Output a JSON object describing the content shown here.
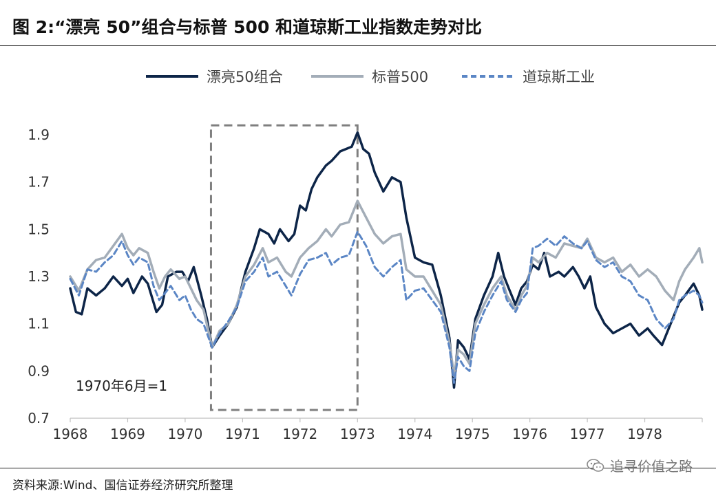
{
  "title": "图 2:“漂亮 50”组合与标普 500 和道琼斯工业指数走势对比",
  "source": "资料来源:Wind、国信证券经济研究所整理",
  "watermark": "追寻价值之路",
  "icons": {
    "watermark": "wechat-icon"
  },
  "chart_data": {
    "type": "line",
    "title": "",
    "xlabel": "",
    "ylabel": "",
    "annotation": "1970年6月=1",
    "highlight": {
      "x_start": 1970.45,
      "x_end": 1973.0,
      "y_start": 0.735,
      "y_end": 1.94,
      "style": "dashed",
      "color": "#7f7f7f"
    },
    "xlim": [
      1968.0,
      1979.0
    ],
    "ylim": [
      0.7,
      1.9
    ],
    "x_ticks": [
      1968,
      1969,
      1970,
      1971,
      1972,
      1973,
      1974,
      1975,
      1976,
      1977,
      1978
    ],
    "x_tick_labels": [
      "1968",
      "1969",
      "1970",
      "1971",
      "1972",
      "1973",
      "1974",
      "1975",
      "1976",
      "1977",
      "1978"
    ],
    "y_ticks": [
      0.7,
      0.9,
      1.1,
      1.3,
      1.5,
      1.7,
      1.9
    ],
    "y_tick_labels": [
      "0.7",
      "0.9",
      "1.1",
      "1.3",
      "1.5",
      "1.7",
      "1.9"
    ],
    "legend": {
      "position": "top"
    },
    "grid": false,
    "series": [
      {
        "name": "漂亮50组合",
        "color": "#0d2548",
        "dash": "solid",
        "points": [
          [
            1968.0,
            1.25
          ],
          [
            1968.1,
            1.15
          ],
          [
            1968.2,
            1.14
          ],
          [
            1968.3,
            1.25
          ],
          [
            1968.45,
            1.22
          ],
          [
            1968.6,
            1.25
          ],
          [
            1968.75,
            1.3
          ],
          [
            1968.9,
            1.26
          ],
          [
            1969.0,
            1.29
          ],
          [
            1969.1,
            1.23
          ],
          [
            1969.25,
            1.3
          ],
          [
            1969.35,
            1.27
          ],
          [
            1969.5,
            1.15
          ],
          [
            1969.6,
            1.18
          ],
          [
            1969.7,
            1.3
          ],
          [
            1969.85,
            1.32
          ],
          [
            1969.95,
            1.32
          ],
          [
            1970.05,
            1.28
          ],
          [
            1970.15,
            1.34
          ],
          [
            1970.28,
            1.22
          ],
          [
            1970.38,
            1.12
          ],
          [
            1970.47,
            1.0
          ],
          [
            1970.6,
            1.05
          ],
          [
            1970.75,
            1.1
          ],
          [
            1970.9,
            1.17
          ],
          [
            1971.05,
            1.32
          ],
          [
            1971.2,
            1.42
          ],
          [
            1971.3,
            1.5
          ],
          [
            1971.45,
            1.48
          ],
          [
            1971.55,
            1.44
          ],
          [
            1971.65,
            1.5
          ],
          [
            1971.8,
            1.45
          ],
          [
            1971.9,
            1.48
          ],
          [
            1972.0,
            1.6
          ],
          [
            1972.1,
            1.58
          ],
          [
            1972.2,
            1.67
          ],
          [
            1972.3,
            1.72
          ],
          [
            1972.45,
            1.77
          ],
          [
            1972.55,
            1.79
          ],
          [
            1972.7,
            1.83
          ],
          [
            1972.8,
            1.84
          ],
          [
            1972.9,
            1.85
          ],
          [
            1973.0,
            1.91
          ],
          [
            1973.1,
            1.84
          ],
          [
            1973.2,
            1.82
          ],
          [
            1973.3,
            1.74
          ],
          [
            1973.45,
            1.66
          ],
          [
            1973.6,
            1.72
          ],
          [
            1973.75,
            1.7
          ],
          [
            1973.85,
            1.55
          ],
          [
            1974.0,
            1.38
          ],
          [
            1974.15,
            1.36
          ],
          [
            1974.3,
            1.35
          ],
          [
            1974.45,
            1.22
          ],
          [
            1974.6,
            1.04
          ],
          [
            1974.68,
            0.83
          ],
          [
            1974.75,
            1.03
          ],
          [
            1974.85,
            1.0
          ],
          [
            1974.95,
            0.95
          ],
          [
            1975.05,
            1.12
          ],
          [
            1975.2,
            1.22
          ],
          [
            1975.35,
            1.3
          ],
          [
            1975.45,
            1.4
          ],
          [
            1975.55,
            1.3
          ],
          [
            1975.65,
            1.24
          ],
          [
            1975.75,
            1.18
          ],
          [
            1975.85,
            1.25
          ],
          [
            1975.95,
            1.28
          ],
          [
            1976.05,
            1.35
          ],
          [
            1976.15,
            1.33
          ],
          [
            1976.25,
            1.4
          ],
          [
            1976.35,
            1.3
          ],
          [
            1976.5,
            1.32
          ],
          [
            1976.6,
            1.3
          ],
          [
            1976.75,
            1.34
          ],
          [
            1976.85,
            1.3
          ],
          [
            1976.95,
            1.25
          ],
          [
            1977.05,
            1.3
          ],
          [
            1977.15,
            1.17
          ],
          [
            1977.3,
            1.1
          ],
          [
            1977.45,
            1.06
          ],
          [
            1977.6,
            1.08
          ],
          [
            1977.75,
            1.1
          ],
          [
            1977.9,
            1.05
          ],
          [
            1978.05,
            1.08
          ],
          [
            1978.15,
            1.05
          ],
          [
            1978.3,
            1.01
          ],
          [
            1978.45,
            1.1
          ],
          [
            1978.6,
            1.19
          ],
          [
            1978.7,
            1.22
          ],
          [
            1978.85,
            1.27
          ],
          [
            1978.95,
            1.22
          ],
          [
            1979.05,
            1.1
          ],
          [
            1979.15,
            1.12
          ],
          [
            1979.3,
            1.17
          ]
        ]
      },
      {
        "name": "标普500",
        "color": "#a3adb8",
        "dash": "solid",
        "points": [
          [
            1968.0,
            1.3
          ],
          [
            1968.15,
            1.24
          ],
          [
            1968.3,
            1.33
          ],
          [
            1968.45,
            1.37
          ],
          [
            1968.6,
            1.38
          ],
          [
            1968.75,
            1.43
          ],
          [
            1968.9,
            1.48
          ],
          [
            1969.0,
            1.42
          ],
          [
            1969.1,
            1.39
          ],
          [
            1969.2,
            1.42
          ],
          [
            1969.35,
            1.4
          ],
          [
            1969.45,
            1.32
          ],
          [
            1969.55,
            1.25
          ],
          [
            1969.65,
            1.3
          ],
          [
            1969.75,
            1.33
          ],
          [
            1969.9,
            1.29
          ],
          [
            1970.0,
            1.3
          ],
          [
            1970.1,
            1.25
          ],
          [
            1970.2,
            1.2
          ],
          [
            1970.32,
            1.16
          ],
          [
            1970.47,
            1.0
          ],
          [
            1970.6,
            1.07
          ],
          [
            1970.75,
            1.1
          ],
          [
            1970.9,
            1.18
          ],
          [
            1971.05,
            1.3
          ],
          [
            1971.2,
            1.35
          ],
          [
            1971.35,
            1.42
          ],
          [
            1971.45,
            1.36
          ],
          [
            1971.6,
            1.38
          ],
          [
            1971.75,
            1.32
          ],
          [
            1971.85,
            1.3
          ],
          [
            1972.0,
            1.38
          ],
          [
            1972.15,
            1.42
          ],
          [
            1972.3,
            1.45
          ],
          [
            1972.45,
            1.5
          ],
          [
            1972.55,
            1.47
          ],
          [
            1972.7,
            1.52
          ],
          [
            1972.85,
            1.53
          ],
          [
            1973.0,
            1.62
          ],
          [
            1973.15,
            1.55
          ],
          [
            1973.3,
            1.48
          ],
          [
            1973.45,
            1.44
          ],
          [
            1973.6,
            1.47
          ],
          [
            1973.75,
            1.48
          ],
          [
            1973.85,
            1.33
          ],
          [
            1974.0,
            1.3
          ],
          [
            1974.15,
            1.3
          ],
          [
            1974.3,
            1.24
          ],
          [
            1974.45,
            1.18
          ],
          [
            1974.6,
            1.02
          ],
          [
            1974.68,
            0.88
          ],
          [
            1974.75,
            0.99
          ],
          [
            1974.85,
            0.97
          ],
          [
            1974.95,
            0.93
          ],
          [
            1975.05,
            1.1
          ],
          [
            1975.2,
            1.18
          ],
          [
            1975.35,
            1.25
          ],
          [
            1975.5,
            1.3
          ],
          [
            1975.6,
            1.22
          ],
          [
            1975.75,
            1.16
          ],
          [
            1975.85,
            1.22
          ],
          [
            1975.95,
            1.26
          ],
          [
            1976.05,
            1.38
          ],
          [
            1976.15,
            1.36
          ],
          [
            1976.3,
            1.4
          ],
          [
            1976.45,
            1.38
          ],
          [
            1976.6,
            1.44
          ],
          [
            1976.75,
            1.43
          ],
          [
            1976.9,
            1.42
          ],
          [
            1977.0,
            1.46
          ],
          [
            1977.15,
            1.38
          ],
          [
            1977.3,
            1.36
          ],
          [
            1977.45,
            1.38
          ],
          [
            1977.6,
            1.32
          ],
          [
            1977.75,
            1.35
          ],
          [
            1977.9,
            1.3
          ],
          [
            1978.05,
            1.33
          ],
          [
            1978.2,
            1.3
          ],
          [
            1978.35,
            1.24
          ],
          [
            1978.5,
            1.2
          ],
          [
            1978.6,
            1.28
          ],
          [
            1978.7,
            1.33
          ],
          [
            1978.85,
            1.38
          ],
          [
            1978.95,
            1.42
          ],
          [
            1979.05,
            1.3
          ],
          [
            1979.15,
            1.3
          ],
          [
            1979.3,
            1.37
          ]
        ]
      },
      {
        "name": "道琼斯工业",
        "color": "#5b86c5",
        "dash": "dashed",
        "points": [
          [
            1968.0,
            1.29
          ],
          [
            1968.15,
            1.22
          ],
          [
            1968.3,
            1.33
          ],
          [
            1968.45,
            1.32
          ],
          [
            1968.6,
            1.36
          ],
          [
            1968.75,
            1.39
          ],
          [
            1968.9,
            1.45
          ],
          [
            1969.0,
            1.39
          ],
          [
            1969.1,
            1.35
          ],
          [
            1969.2,
            1.38
          ],
          [
            1969.35,
            1.36
          ],
          [
            1969.45,
            1.26
          ],
          [
            1969.55,
            1.2
          ],
          [
            1969.65,
            1.23
          ],
          [
            1969.75,
            1.26
          ],
          [
            1969.9,
            1.2
          ],
          [
            1970.0,
            1.22
          ],
          [
            1970.1,
            1.16
          ],
          [
            1970.2,
            1.12
          ],
          [
            1970.32,
            1.1
          ],
          [
            1970.47,
            1.0
          ],
          [
            1970.6,
            1.06
          ],
          [
            1970.75,
            1.11
          ],
          [
            1970.9,
            1.17
          ],
          [
            1971.05,
            1.28
          ],
          [
            1971.2,
            1.32
          ],
          [
            1971.35,
            1.38
          ],
          [
            1971.45,
            1.3
          ],
          [
            1971.6,
            1.32
          ],
          [
            1971.75,
            1.26
          ],
          [
            1971.85,
            1.22
          ],
          [
            1972.0,
            1.31
          ],
          [
            1972.15,
            1.37
          ],
          [
            1972.3,
            1.38
          ],
          [
            1972.45,
            1.4
          ],
          [
            1972.55,
            1.35
          ],
          [
            1972.7,
            1.38
          ],
          [
            1972.85,
            1.39
          ],
          [
            1973.0,
            1.49
          ],
          [
            1973.15,
            1.43
          ],
          [
            1973.3,
            1.34
          ],
          [
            1973.45,
            1.3
          ],
          [
            1973.6,
            1.34
          ],
          [
            1973.75,
            1.37
          ],
          [
            1973.85,
            1.2
          ],
          [
            1974.0,
            1.24
          ],
          [
            1974.15,
            1.25
          ],
          [
            1974.3,
            1.2
          ],
          [
            1974.45,
            1.15
          ],
          [
            1974.6,
            1.0
          ],
          [
            1974.68,
            0.85
          ],
          [
            1974.75,
            0.96
          ],
          [
            1974.85,
            0.92
          ],
          [
            1974.95,
            0.9
          ],
          [
            1975.05,
            1.06
          ],
          [
            1975.2,
            1.15
          ],
          [
            1975.35,
            1.22
          ],
          [
            1975.5,
            1.28
          ],
          [
            1975.6,
            1.2
          ],
          [
            1975.75,
            1.15
          ],
          [
            1975.85,
            1.2
          ],
          [
            1975.95,
            1.23
          ],
          [
            1976.05,
            1.42
          ],
          [
            1976.15,
            1.43
          ],
          [
            1976.3,
            1.46
          ],
          [
            1976.45,
            1.43
          ],
          [
            1976.6,
            1.47
          ],
          [
            1976.75,
            1.44
          ],
          [
            1976.9,
            1.42
          ],
          [
            1977.0,
            1.45
          ],
          [
            1977.15,
            1.37
          ],
          [
            1977.3,
            1.34
          ],
          [
            1977.45,
            1.36
          ],
          [
            1977.6,
            1.3
          ],
          [
            1977.75,
            1.28
          ],
          [
            1977.9,
            1.22
          ],
          [
            1978.05,
            1.2
          ],
          [
            1978.2,
            1.12
          ],
          [
            1978.35,
            1.08
          ],
          [
            1978.5,
            1.12
          ],
          [
            1978.6,
            1.2
          ],
          [
            1978.7,
            1.22
          ],
          [
            1978.85,
            1.24
          ],
          [
            1978.95,
            1.22
          ],
          [
            1979.05,
            1.16
          ],
          [
            1979.15,
            1.15
          ],
          [
            1979.3,
            1.22
          ]
        ]
      }
    ]
  }
}
